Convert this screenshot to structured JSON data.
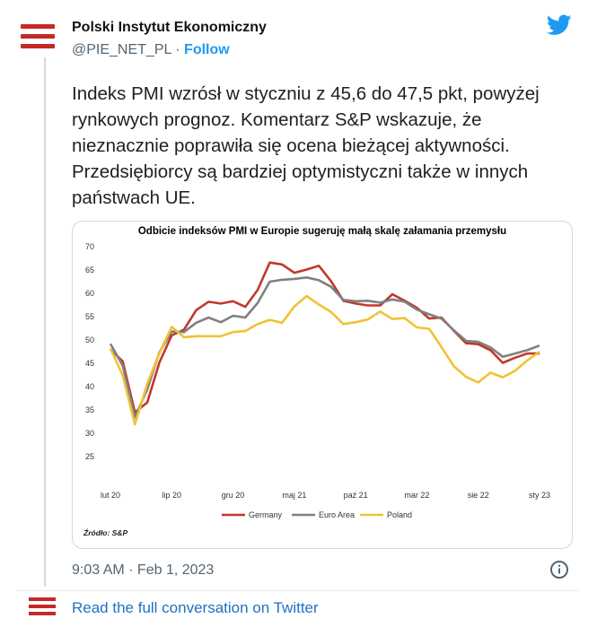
{
  "colors": {
    "brand": "#c62828",
    "twitter_blue": "#1d9bf0",
    "link": "#1d72c2"
  },
  "tweet": {
    "author_name": "Polski Instytut Ekonomiczny",
    "handle": "@PIE_NET_PL",
    "separator": "·",
    "follow_label": "Follow",
    "text": "Indeks PMI wzrósł w styczniu z 45,6 do 47,5 pkt, powyżej rynkowych prognoz. Komentarz S&P wskazuje, że nieznacznie poprawiła się ocena bieżącej aktywności. Przedsiębiorcy są bardziej optymistyczni także w innych państwach UE.",
    "timestamp": "9:03 AM · Feb 1, 2023",
    "read_more": "Read the full conversation on Twitter",
    "icons": [
      "pie-logo-icon",
      "twitter-bird-icon",
      "info-icon"
    ]
  },
  "chart_data": {
    "type": "line",
    "title": "Odbicie indeksów PMI w Europie sugeruję małą skalę załamania przemysłu",
    "source": "Źródło: S&P",
    "ylim": [
      25,
      70
    ],
    "yticks": [
      25,
      30,
      35,
      40,
      45,
      50,
      55,
      60,
      65,
      70
    ],
    "xtick_labels": [
      "lut 20",
      "lip 20",
      "gru 20",
      "maj 21",
      "paź 21",
      "mar 22",
      "sie 22",
      "sty 23"
    ],
    "legend_position": "bottom",
    "x": [
      "lut 20",
      "mar 20",
      "kwi 20",
      "maj 20",
      "cze 20",
      "lip 20",
      "sie 20",
      "wrz 20",
      "paź 20",
      "lis 20",
      "gru 20",
      "sty 21",
      "lut 21",
      "mar 21",
      "kwi 21",
      "maj 21",
      "cze 21",
      "lip 21",
      "sie 21",
      "wrz 21",
      "paź 21",
      "lis 21",
      "gru 21",
      "sty 22",
      "lut 22",
      "mar 22",
      "kwi 22",
      "maj 22",
      "cze 22",
      "lip 22",
      "sie 22",
      "wrz 22",
      "paź 22",
      "lis 22",
      "gru 22",
      "sty 23"
    ],
    "series": [
      {
        "name": "Germany",
        "color": "#c0392b",
        "values": [
          48.0,
          45.4,
          34.5,
          36.6,
          45.2,
          51.0,
          52.2,
          56.4,
          58.2,
          57.8,
          58.3,
          57.1,
          60.7,
          66.6,
          66.2,
          64.4,
          65.1,
          65.9,
          62.6,
          58.4,
          57.8,
          57.4,
          57.4,
          59.8,
          58.4,
          56.9,
          54.6,
          54.8,
          52.0,
          49.3,
          49.1,
          47.8,
          45.1,
          46.2,
          47.1,
          47.1
        ]
      },
      {
        "name": "Euro Area",
        "color": "#808080",
        "values": [
          49.2,
          44.5,
          33.4,
          39.4,
          47.4,
          51.8,
          51.7,
          53.7,
          54.8,
          53.8,
          55.2,
          54.8,
          57.9,
          62.5,
          62.9,
          63.1,
          63.4,
          62.8,
          61.4,
          58.6,
          58.3,
          58.4,
          58.0,
          58.7,
          58.2,
          56.5,
          55.5,
          54.6,
          52.1,
          49.8,
          49.6,
          48.4,
          46.4,
          47.1,
          47.8,
          48.8
        ]
      },
      {
        "name": "Poland",
        "color": "#f0c234",
        "values": [
          48.2,
          42.4,
          31.9,
          40.6,
          47.2,
          52.8,
          50.6,
          50.8,
          50.8,
          50.8,
          51.7,
          51.9,
          53.4,
          54.3,
          53.7,
          57.2,
          59.4,
          57.6,
          56.0,
          53.4,
          53.8,
          54.4,
          56.1,
          54.5,
          54.7,
          52.7,
          52.4,
          48.5,
          44.4,
          42.1,
          40.9,
          43.0,
          42.0,
          43.4,
          45.6,
          47.5
        ]
      }
    ]
  }
}
